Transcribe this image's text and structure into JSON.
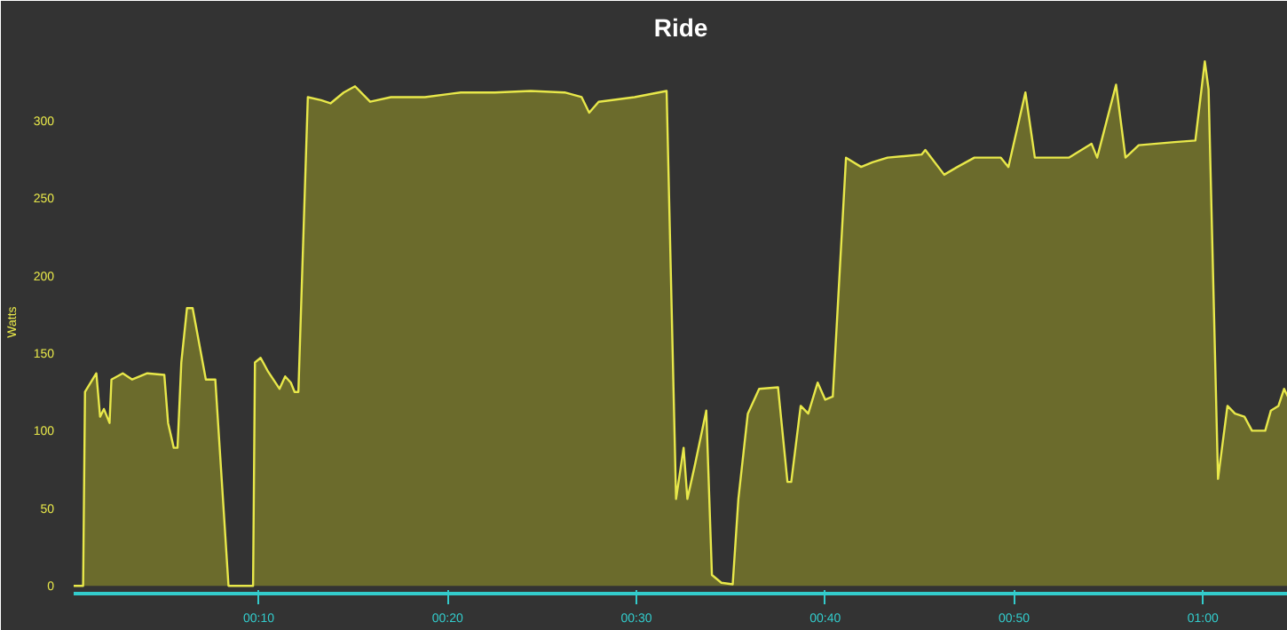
{
  "chart_data": {
    "type": "area",
    "title": "Ride",
    "ylabel": "Watts",
    "x": [
      0.2,
      0.7,
      0.8,
      1.4,
      1.6,
      1.8,
      2.1,
      2.2,
      2.8,
      3.3,
      4.1,
      5.0,
      5.2,
      5.5,
      5.7,
      5.9,
      6.2,
      6.5,
      7.2,
      7.7,
      8.4,
      9.7,
      9.8,
      10.1,
      10.5,
      11.1,
      11.4,
      11.7,
      11.9,
      12.1,
      12.6,
      13.3,
      13.8,
      14.5,
      15.1,
      15.9,
      17.0,
      18.8,
      20.7,
      22.5,
      24.4,
      26.2,
      27.1,
      27.5,
      28.0,
      29.9,
      31.6,
      32.1,
      32.5,
      32.7,
      33.1,
      33.7,
      34.0,
      34.5,
      35.1,
      35.4,
      35.9,
      36.5,
      37.5,
      38.0,
      38.2,
      38.7,
      39.1,
      39.6,
      40.0,
      40.4,
      41.1,
      41.9,
      42.5,
      43.3,
      45.1,
      45.3,
      46.3,
      47.0,
      47.9,
      49.3,
      49.7,
      50.6,
      51.1,
      52.9,
      54.1,
      54.4,
      55.4,
      55.9,
      56.6,
      58.5,
      59.6,
      60.1,
      60.3,
      60.8,
      61.3,
      61.7,
      62.2,
      62.6,
      63.3,
      63.6,
      64.0,
      64.3,
      64.5
    ],
    "series": [
      {
        "color": "#e8e84a",
        "values": [
          0,
          0,
          125,
          137,
          109,
          114,
          105,
          133,
          137,
          133,
          137,
          136,
          105,
          89,
          89,
          144,
          179,
          179,
          133,
          133,
          0,
          0,
          144,
          147,
          138,
          127,
          135,
          131,
          125,
          125,
          315,
          313,
          311,
          318,
          322,
          312,
          315,
          315,
          318,
          318,
          319,
          318,
          315,
          305,
          312,
          315,
          319,
          56,
          89,
          56,
          78,
          113,
          7,
          2,
          1,
          56,
          111,
          127,
          128,
          67,
          67,
          116,
          111,
          131,
          120,
          122,
          276,
          270,
          273,
          276,
          278,
          281,
          265,
          270,
          276,
          276,
          270,
          318,
          276,
          276,
          285,
          276,
          323,
          276,
          284,
          286,
          287,
          338,
          320,
          69,
          116,
          111,
          109,
          100,
          100,
          113,
          116,
          127,
          122
        ]
      }
    ],
    "xlim": [
      0.2,
      64.5
    ],
    "ylim": [
      -5,
      345
    ],
    "xticks": [
      {
        "value": 10,
        "label": "00:10"
      },
      {
        "value": 20,
        "label": "00:20"
      },
      {
        "value": 30,
        "label": "00:30"
      },
      {
        "value": 40,
        "label": "00:40"
      },
      {
        "value": 50,
        "label": "00:50"
      },
      {
        "value": 60,
        "label": "01:00"
      }
    ],
    "yticks": [
      0,
      50,
      100,
      150,
      200,
      250,
      300
    ],
    "grid": false
  }
}
